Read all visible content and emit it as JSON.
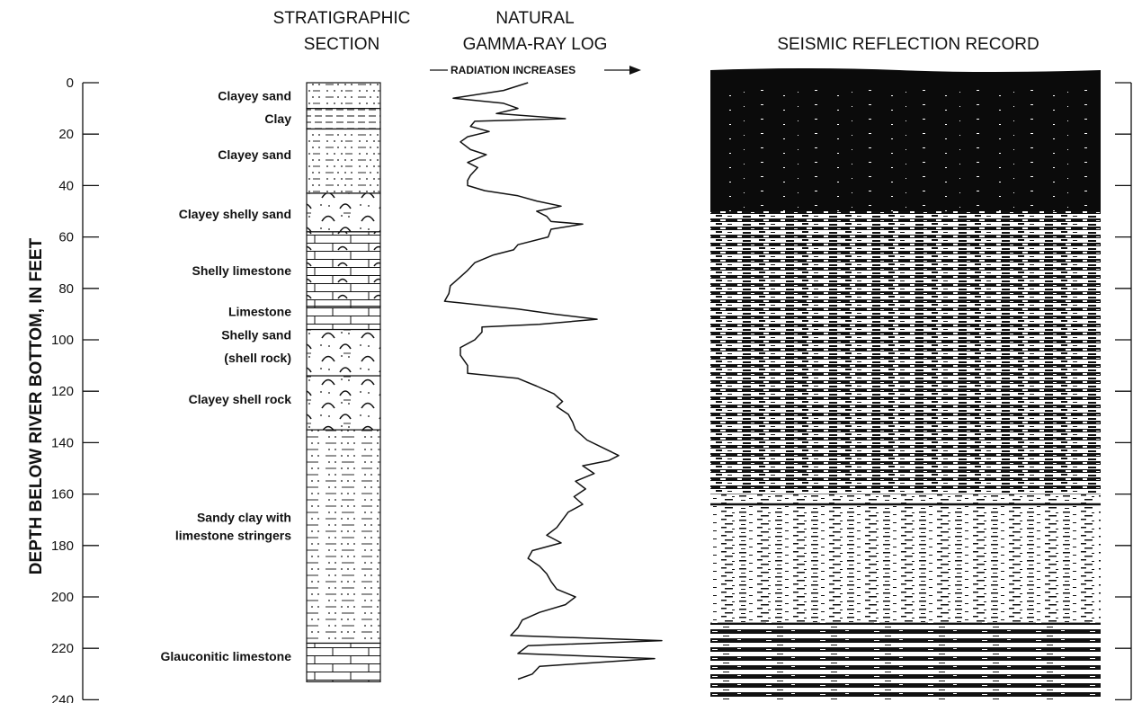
{
  "headers": {
    "strat_line1": "STRATIGRAPHIC",
    "strat_line2": "SECTION",
    "gamma_line1": "NATURAL",
    "gamma_line2": "GAMMA-RAY LOG",
    "gamma_sub": "RADIATION INCREASES",
    "seismic": "SEISMIC REFLECTION RECORD"
  },
  "axis": {
    "title": "DEPTH BELOW RIVER BOTTOM, IN FEET",
    "depth_min": 0,
    "depth_max": 240,
    "ticks": [
      "0",
      "20",
      "40",
      "60",
      "80",
      "100",
      "120",
      "140",
      "160",
      "180",
      "200",
      "220",
      "240"
    ]
  },
  "units": [
    {
      "name": "Clayey sand",
      "top": 0,
      "bottom": 10,
      "pattern": "clayey-sand"
    },
    {
      "name": "Clay",
      "top": 10,
      "bottom": 18,
      "pattern": "clay"
    },
    {
      "name": "Clayey sand",
      "top": 18,
      "bottom": 43,
      "pattern": "clayey-sand"
    },
    {
      "name": "Clayey shelly sand",
      "top": 43,
      "bottom": 58,
      "pattern": "shelly-sand"
    },
    {
      "name": "Shelly limestone",
      "top": 58,
      "bottom": 87,
      "pattern": "shelly-limestone"
    },
    {
      "name": "Limestone",
      "top": 87,
      "bottom": 96,
      "pattern": "limestone"
    },
    {
      "name": "Shelly sand (shell rock)",
      "top": 96,
      "bottom": 114,
      "pattern": "shelly-sand"
    },
    {
      "name": "Clayey shell rock",
      "top": 114,
      "bottom": 135,
      "pattern": "shelly-sand"
    },
    {
      "name": "Sandy clay with limestone stringers",
      "top": 135,
      "bottom": 218,
      "pattern": "sandy-clay"
    },
    {
      "name": "Glauconitic limestone",
      "top": 218,
      "bottom": 233,
      "pattern": "limestone"
    }
  ],
  "unit_labels": [
    {
      "text": "Clayey sand",
      "depth": 5
    },
    {
      "text": "Clay",
      "depth": 14
    },
    {
      "text": "Clayey sand",
      "depth": 28
    },
    {
      "text": "Clayey shelly sand",
      "depth": 51
    },
    {
      "text": "Shelly limestone",
      "depth": 73
    },
    {
      "text": "Limestone",
      "depth": 89
    },
    {
      "text": "Shelly sand",
      "depth": 98
    },
    {
      "text": "(shell rock)",
      "depth": 107
    },
    {
      "text": "Clayey shell rock",
      "depth": 123
    },
    {
      "text": "Sandy clay with",
      "depth": 169
    },
    {
      "text": "limestone stringers",
      "depth": 176
    },
    {
      "text": "Glauconitic limestone",
      "depth": 223
    }
  ],
  "gamma_log": [
    [
      0,
      0.62
    ],
    [
      3,
      0.45
    ],
    [
      6,
      0.1
    ],
    [
      8,
      0.45
    ],
    [
      10,
      0.55
    ],
    [
      12,
      0.4
    ],
    [
      14,
      0.88
    ],
    [
      15,
      0.25
    ],
    [
      17,
      0.22
    ],
    [
      19,
      0.35
    ],
    [
      21,
      0.2
    ],
    [
      23,
      0.15
    ],
    [
      26,
      0.22
    ],
    [
      28,
      0.33
    ],
    [
      31,
      0.2
    ],
    [
      33,
      0.27
    ],
    [
      36,
      0.22
    ],
    [
      38,
      0.2
    ],
    [
      40,
      0.2
    ],
    [
      42,
      0.32
    ],
    [
      44,
      0.55
    ],
    [
      46,
      0.68
    ],
    [
      48,
      0.85
    ],
    [
      50,
      0.68
    ],
    [
      52,
      0.75
    ],
    [
      54,
      0.78
    ],
    [
      55,
      1.0
    ],
    [
      57,
      0.78
    ],
    [
      60,
      0.76
    ],
    [
      63,
      0.55
    ],
    [
      65,
      0.52
    ],
    [
      67,
      0.38
    ],
    [
      70,
      0.25
    ],
    [
      73,
      0.2
    ],
    [
      76,
      0.14
    ],
    [
      79,
      0.08
    ],
    [
      82,
      0.07
    ],
    [
      85,
      0.04
    ],
    [
      88,
      0.55
    ],
    [
      90,
      0.8
    ],
    [
      92,
      1.1
    ],
    [
      94,
      0.7
    ],
    [
      95,
      0.3
    ],
    [
      97,
      0.3
    ],
    [
      100,
      0.25
    ],
    [
      103,
      0.15
    ],
    [
      106,
      0.15
    ],
    [
      110,
      0.2
    ],
    [
      113,
      0.2
    ],
    [
      115,
      0.55
    ],
    [
      118,
      0.68
    ],
    [
      121,
      0.8
    ],
    [
      124,
      0.86
    ],
    [
      126,
      0.82
    ],
    [
      129,
      0.9
    ],
    [
      132,
      0.93
    ],
    [
      135,
      0.95
    ],
    [
      139,
      1.03
    ],
    [
      142,
      1.14
    ],
    [
      145,
      1.25
    ],
    [
      147,
      1.18
    ],
    [
      149,
      1.0
    ],
    [
      152,
      1.08
    ],
    [
      155,
      0.95
    ],
    [
      158,
      1.02
    ],
    [
      161,
      0.94
    ],
    [
      164,
      1.0
    ],
    [
      167,
      0.9
    ],
    [
      170,
      0.86
    ],
    [
      173,
      0.82
    ],
    [
      176,
      0.75
    ],
    [
      179,
      0.85
    ],
    [
      182,
      0.65
    ],
    [
      185,
      0.62
    ],
    [
      188,
      0.7
    ],
    [
      191,
      0.75
    ],
    [
      194,
      0.78
    ],
    [
      197,
      0.82
    ],
    [
      200,
      0.95
    ],
    [
      203,
      0.88
    ],
    [
      206,
      0.7
    ],
    [
      209,
      0.58
    ],
    [
      212,
      0.55
    ],
    [
      215,
      0.5
    ],
    [
      217,
      1.55
    ],
    [
      219,
      0.62
    ],
    [
      222,
      0.55
    ],
    [
      224,
      1.5
    ],
    [
      227,
      0.7
    ],
    [
      230,
      0.65
    ],
    [
      232,
      0.55
    ]
  ],
  "seismic_bands": [
    {
      "from": 0,
      "to": 50,
      "style": "dark"
    },
    {
      "from": 50,
      "to": 160,
      "style": "mixed"
    },
    {
      "from": 160,
      "to": 210,
      "style": "light"
    },
    {
      "from": 210,
      "to": 240,
      "style": "banded"
    }
  ],
  "seismic_reflector_depth": 164,
  "colors": {
    "ink": "#111111",
    "background": "#ffffff"
  }
}
